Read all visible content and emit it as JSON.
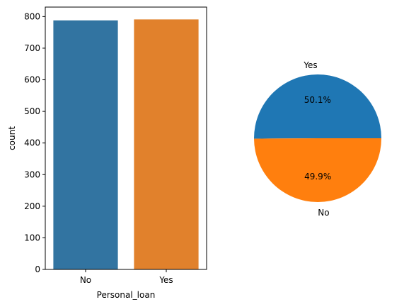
{
  "chart_data": [
    {
      "type": "bar",
      "categories": [
        "No",
        "Yes"
      ],
      "values": [
        788,
        791
      ],
      "xlabel": "Personal_loan",
      "ylabel": "count",
      "ylim": [
        0,
        830
      ],
      "yticks": [
        0,
        100,
        200,
        300,
        400,
        500,
        600,
        700,
        800
      ],
      "grid": false,
      "colors": [
        "#3274a1",
        "#e1812c"
      ]
    },
    {
      "type": "pie",
      "labels": [
        "Yes",
        "No"
      ],
      "values": [
        50.1,
        49.9
      ],
      "pct_labels": [
        "50.1%",
        "49.9%"
      ],
      "colors": [
        "#1f77b4",
        "#ff7f0e"
      ]
    }
  ]
}
